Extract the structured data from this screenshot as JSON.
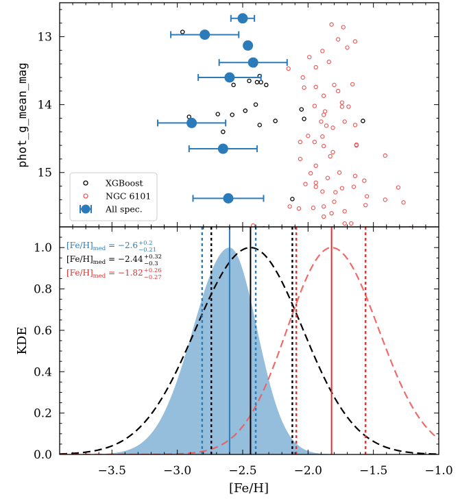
{
  "chart_data": [
    {
      "type": "scatter",
      "panel": "top",
      "ylabel": "phot_g_mean_mag",
      "xlim": [
        -3.9,
        -1.0
      ],
      "ylim": [
        12.5,
        15.8
      ],
      "y_inverted": true,
      "yticks": [
        13,
        14,
        15
      ],
      "legend": {
        "placement": "bottom-left",
        "entries": [
          "XGBoost",
          "NGC 6101",
          "All spec."
        ]
      },
      "series": [
        {
          "name": "XGBoost",
          "color": "#000000",
          "marker": "open-circle",
          "points": [
            [
              -2.96,
              12.93
            ],
            [
              -2.43,
              13.35
            ],
            [
              -2.41,
              13.42
            ],
            [
              -2.37,
              13.58
            ],
            [
              -2.45,
              13.65
            ],
            [
              -2.57,
              13.71
            ],
            [
              -2.39,
              13.67
            ],
            [
              -2.36,
              13.67
            ],
            [
              -2.32,
              13.71
            ],
            [
              -2.4,
              14.0
            ],
            [
              -2.48,
              14.09
            ],
            [
              -2.58,
              14.15
            ],
            [
              -2.69,
              14.14
            ],
            [
              -2.91,
              14.18
            ],
            [
              -2.25,
              14.24
            ],
            [
              -2.37,
              14.3
            ],
            [
              -2.65,
              14.4
            ],
            [
              -2.05,
              14.07
            ],
            [
              -2.03,
              14.21
            ],
            [
              -1.58,
              14.24
            ],
            [
              -2.12,
              15.39
            ]
          ]
        },
        {
          "name": "NGC 6101",
          "color": "#ee5a5a",
          "marker": "open-circle",
          "points": [
            [
              -1.82,
              12.82
            ],
            [
              -1.73,
              12.86
            ],
            [
              -1.77,
              13.04
            ],
            [
              -1.64,
              13.07
            ],
            [
              -1.7,
              13.16
            ],
            [
              -1.89,
              13.21
            ],
            [
              -1.99,
              13.3
            ],
            [
              -1.94,
              13.45
            ],
            [
              -1.84,
              13.37
            ],
            [
              -2.15,
              13.47
            ],
            [
              -2.04,
              13.6
            ],
            [
              -1.94,
              13.74
            ],
            [
              -2.03,
              13.75
            ],
            [
              -1.8,
              13.71
            ],
            [
              -1.66,
              13.7
            ],
            [
              -1.77,
              13.8
            ],
            [
              -1.88,
              13.87
            ],
            [
              -1.74,
              13.97
            ],
            [
              -1.69,
              14.03
            ],
            [
              -1.95,
              14.02
            ],
            [
              -1.74,
              14.03
            ],
            [
              -1.87,
              14.1
            ],
            [
              -1.88,
              14.15
            ],
            [
              -1.9,
              14.25
            ],
            [
              -1.72,
              14.25
            ],
            [
              -1.64,
              14.3
            ],
            [
              -1.86,
              14.31
            ],
            [
              -1.81,
              14.34
            ],
            [
              -2.0,
              14.46
            ],
            [
              -1.89,
              14.47
            ],
            [
              -1.95,
              14.55
            ],
            [
              -1.63,
              14.59
            ],
            [
              -2.06,
              14.55
            ],
            [
              -1.88,
              14.61
            ],
            [
              -1.63,
              14.6
            ],
            [
              -1.81,
              14.7
            ],
            [
              -1.83,
              14.76
            ],
            [
              -1.41,
              14.75
            ],
            [
              -2.06,
              14.8
            ],
            [
              -1.94,
              14.9
            ],
            [
              -1.98,
              15.01
            ],
            [
              -1.76,
              15.0
            ],
            [
              -1.85,
              15.08
            ],
            [
              -1.64,
              15.05
            ],
            [
              -1.57,
              15.12
            ],
            [
              -1.94,
              15.15
            ],
            [
              -1.94,
              15.21
            ],
            [
              -2.02,
              15.17
            ],
            [
              -1.74,
              15.23
            ],
            [
              -1.65,
              15.21
            ],
            [
              -1.31,
              15.22
            ],
            [
              -1.89,
              15.28
            ],
            [
              -1.79,
              15.29
            ],
            [
              -1.55,
              15.35
            ],
            [
              -1.41,
              15.4
            ],
            [
              -1.27,
              15.44
            ],
            [
              -1.8,
              15.43
            ],
            [
              -1.88,
              15.5
            ],
            [
              -2.07,
              15.53
            ],
            [
              -1.96,
              15.52
            ],
            [
              -1.72,
              15.57
            ],
            [
              -1.56,
              15.48
            ],
            [
              -2.14,
              15.5
            ],
            [
              -1.82,
              15.6
            ],
            [
              -2.42,
              15.78
            ],
            [
              -2.34,
              15.82
            ],
            [
              -1.72,
              15.75
            ],
            [
              -1.67,
              15.75
            ],
            [
              -1.88,
              15.65
            ],
            [
              -1.22,
              15.82
            ]
          ]
        },
        {
          "name": "All spec.",
          "color": "#2b7bba",
          "marker": "filled-circle-errorbar",
          "points": [
            {
              "x": -2.5,
              "y": 12.73,
              "xerr": [
                0.09,
                0.09
              ]
            },
            {
              "x": -2.79,
              "y": 12.97,
              "xerr": [
                0.26,
                0.26
              ]
            },
            {
              "x": -2.46,
              "y": 13.13,
              "xerr": [
                0,
                0
              ]
            },
            {
              "x": -2.42,
              "y": 13.38,
              "xerr": [
                0.26,
                0.26
              ]
            },
            {
              "x": -2.6,
              "y": 13.6,
              "xerr": [
                0.24,
                0.24
              ]
            },
            {
              "x": -2.89,
              "y": 14.27,
              "xerr": [
                0.26,
                0.26
              ]
            },
            {
              "x": -2.65,
              "y": 14.65,
              "xerr": [
                0.26,
                0.26
              ]
            },
            {
              "x": -2.61,
              "y": 15.38,
              "xerr": [
                0.27,
                0.27
              ]
            }
          ]
        }
      ]
    },
    {
      "type": "line",
      "panel": "bottom",
      "xlabel": "[Fe/H]",
      "ylabel": "KDE",
      "xlim": [
        -3.9,
        -1.0
      ],
      "ylim": [
        0.0,
        1.1
      ],
      "xticks": [
        -3.5,
        -3.0,
        -2.5,
        -2.0,
        -1.5,
        -1.0
      ],
      "xtick_labels": [
        "−3.5",
        "−3.0",
        "−2.5",
        "−2.0",
        "−1.5",
        "−1.0"
      ],
      "yticks": [
        0.0,
        0.2,
        0.4,
        0.6,
        0.8,
        1.0
      ],
      "ytick_labels": [
        "0.0",
        "0.2",
        "0.4",
        "0.6",
        "0.8",
        "1.0"
      ],
      "series": [
        {
          "name": "All spec.",
          "style": "filled",
          "color": "#2b7bba",
          "mu": -2.6,
          "sigma_left": 0.28,
          "sigma_right": 0.21
        },
        {
          "name": "XGBoost",
          "style": "dashed",
          "color": "#000000",
          "mu": -2.44,
          "sigma_left": 0.42,
          "sigma_right": 0.4
        },
        {
          "name": "NGC 6101",
          "style": "dashed",
          "color": "#ee5a5a",
          "mu": -1.82,
          "sigma_left": 0.34,
          "sigma_right": 0.36
        }
      ],
      "vlines": [
        {
          "x": -2.6,
          "style": "solid",
          "color": "#2b7bba"
        },
        {
          "x": -2.81,
          "style": "dotted",
          "color": "#2b7bba"
        },
        {
          "x": -2.4,
          "style": "dotted",
          "color": "#2b7bba"
        },
        {
          "x": -2.44,
          "style": "solid",
          "color": "#000000"
        },
        {
          "x": -2.74,
          "style": "dotted",
          "color": "#000000"
        },
        {
          "x": -2.12,
          "style": "dotted",
          "color": "#000000"
        },
        {
          "x": -1.82,
          "style": "solid",
          "color": "#e62e2e"
        },
        {
          "x": -2.09,
          "style": "dotted",
          "color": "#e62e2e"
        },
        {
          "x": -1.56,
          "style": "dotted",
          "color": "#e62e2e"
        }
      ],
      "annotations": [
        {
          "color": "#2b7bba",
          "value": "−2.6",
          "plus": "+0.2",
          "minus": "−0.21"
        },
        {
          "color": "#000000",
          "value": "−2.44",
          "plus": "+0.32",
          "minus": "−0.3"
        },
        {
          "color": "#e62e2e",
          "value": "−1.82",
          "plus": "+0.26",
          "minus": "−0.27"
        }
      ],
      "annotation_prefix": "[Fe/H]",
      "annotation_sub": "med",
      "annotation_eq": " = "
    }
  ]
}
